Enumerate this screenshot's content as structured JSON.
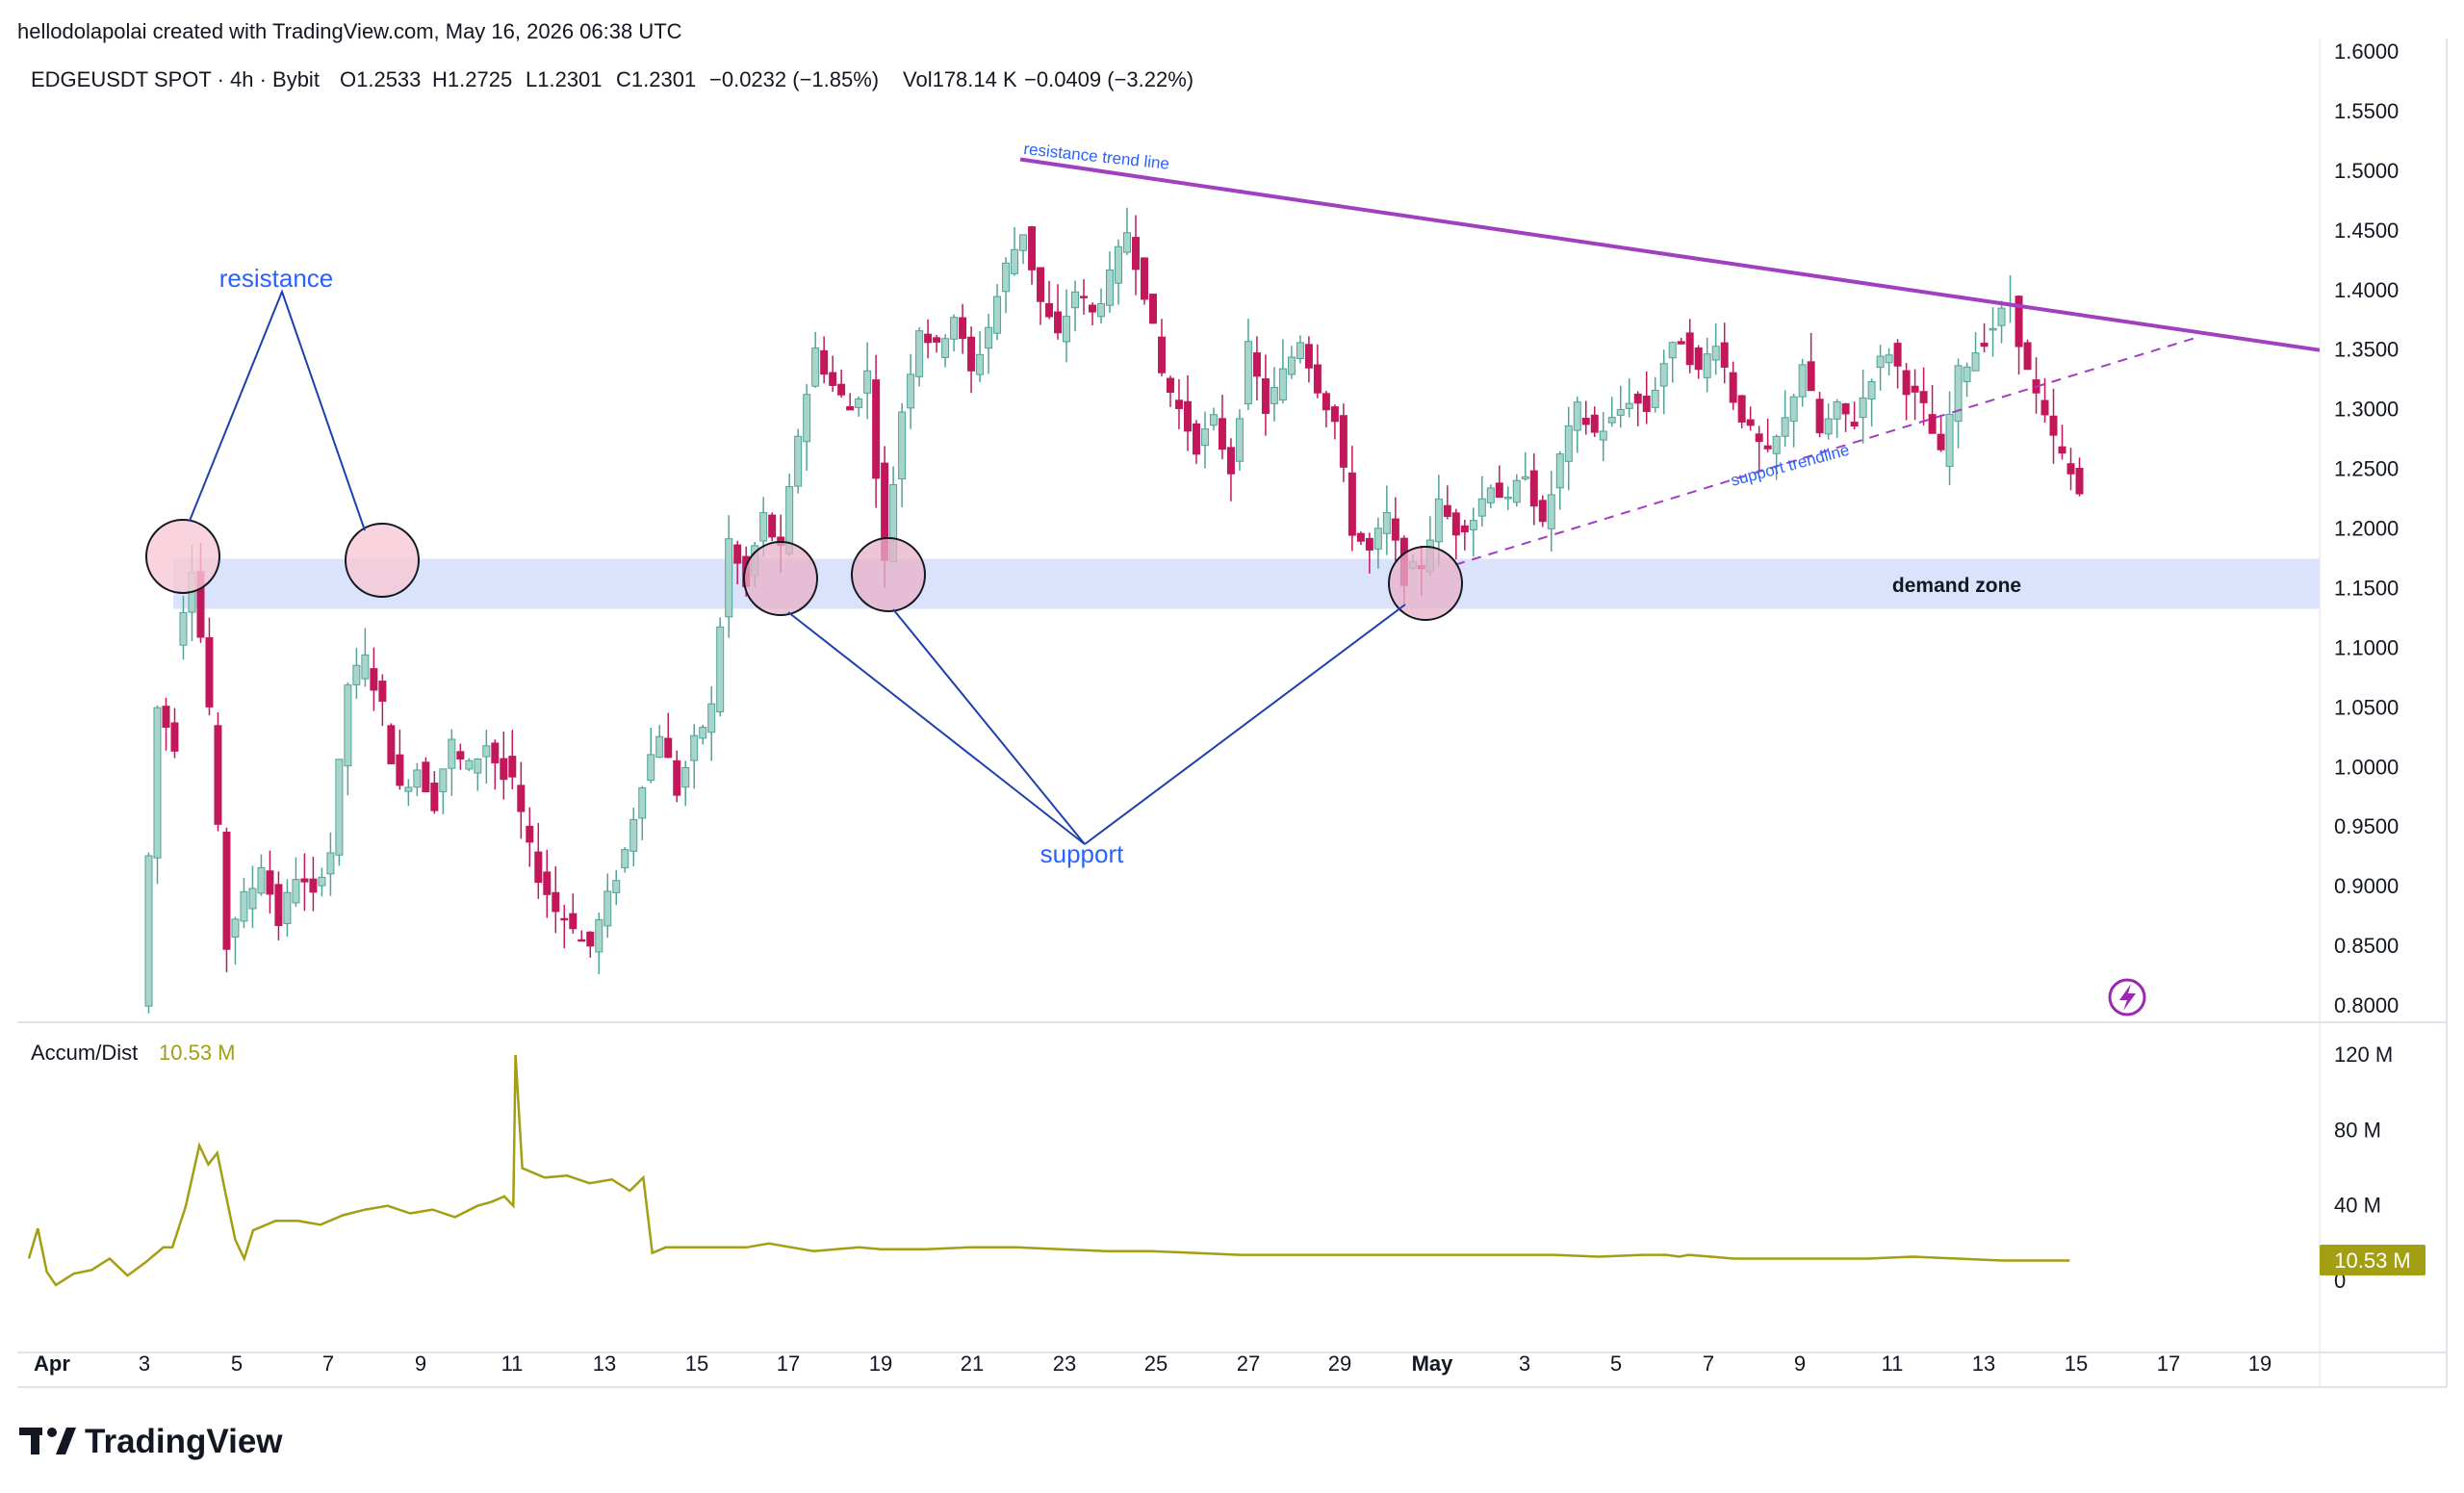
{
  "header": {
    "credit": "hellodolapolai created with TradingView.com, May 16, 2026 06:38 UTC",
    "symbol": "EDGEUSDT SPOT · 4h · Bybit",
    "open": "O1.2533",
    "high": "H1.2725",
    "low": "L1.2301",
    "close": "C1.2301",
    "change": "−0.0232 (−1.85%)",
    "volume": "Vol178.14 K",
    "volume_change": "−0.0409 (−3.22%)"
  },
  "colors": {
    "up": "#4fa397",
    "up_fill": "#a8d5cb",
    "down": "#c2185b",
    "resistance_line": "#a13fc1",
    "zone": "#dbe2fb",
    "circle_fill": "#f8c8d4",
    "annotation_blue": "#1e40af",
    "label_blue": "#2962ff",
    "indicator": "#a39e12"
  },
  "annotations": {
    "resistance": "resistance",
    "support": "support",
    "resistance_trend": "resistance trend line",
    "support_trend": "support trendline",
    "demand_zone": "demand zone"
  },
  "indicator": {
    "name": "Accum/Dist",
    "value": "10.53 M",
    "badge": "10.53 M",
    "axis_labels": [
      "120 M",
      "80 M",
      "40 M",
      "0"
    ],
    "axis_values": [
      120,
      80,
      40,
      0
    ],
    "series": [
      [
        0,
        12
      ],
      [
        0.2,
        28
      ],
      [
        0.4,
        5
      ],
      [
        0.6,
        -2
      ],
      [
        1,
        4
      ],
      [
        1.4,
        6
      ],
      [
        1.8,
        12
      ],
      [
        2.2,
        3
      ],
      [
        2.6,
        10
      ],
      [
        3,
        18
      ],
      [
        3.2,
        18
      ],
      [
        3.5,
        40
      ],
      [
        3.8,
        72
      ],
      [
        4,
        62
      ],
      [
        4.2,
        68
      ],
      [
        4.4,
        45
      ],
      [
        4.6,
        22
      ],
      [
        4.8,
        12
      ],
      [
        5,
        27
      ],
      [
        5.5,
        32
      ],
      [
        6,
        32
      ],
      [
        6.5,
        30
      ],
      [
        7,
        35
      ],
      [
        7.5,
        38
      ],
      [
        8,
        40
      ],
      [
        8.5,
        36
      ],
      [
        9,
        38
      ],
      [
        9.5,
        34
      ],
      [
        10,
        40
      ],
      [
        10.3,
        42
      ],
      [
        10.6,
        45
      ],
      [
        10.8,
        40
      ],
      [
        10.85,
        120
      ],
      [
        11,
        60
      ],
      [
        11.5,
        55
      ],
      [
        12,
        56
      ],
      [
        12.5,
        52
      ],
      [
        13,
        54
      ],
      [
        13.4,
        48
      ],
      [
        13.7,
        55
      ],
      [
        13.9,
        15
      ],
      [
        14.2,
        18
      ],
      [
        15,
        18
      ],
      [
        16,
        18
      ],
      [
        16.5,
        20
      ],
      [
        17,
        18
      ],
      [
        17.5,
        16
      ],
      [
        18,
        17
      ],
      [
        18.5,
        18
      ],
      [
        19,
        17
      ],
      [
        20,
        17
      ],
      [
        21,
        18
      ],
      [
        22,
        18
      ],
      [
        23,
        17
      ],
      [
        24,
        16
      ],
      [
        25,
        16
      ],
      [
        26,
        15
      ],
      [
        27,
        14
      ],
      [
        28,
        14
      ],
      [
        29,
        14
      ],
      [
        30,
        14
      ],
      [
        32,
        14
      ],
      [
        34,
        14
      ],
      [
        35,
        13
      ],
      [
        36,
        14
      ],
      [
        36.5,
        14
      ],
      [
        36.8,
        13
      ],
      [
        37,
        14
      ],
      [
        37.5,
        13
      ],
      [
        38,
        12
      ],
      [
        38.5,
        12
      ],
      [
        39,
        12
      ],
      [
        40,
        12
      ],
      [
        41,
        12
      ],
      [
        42,
        13
      ],
      [
        43,
        12
      ],
      [
        44,
        11
      ],
      [
        45,
        11
      ],
      [
        45.5,
        11
      ]
    ]
  },
  "watermark": "TradingView",
  "chart_data": {
    "type": "candlestick",
    "timeframe": "4h",
    "symbol": "EDGEUSDT",
    "exchange": "Bybit",
    "x_tick_labels": [
      "Apr",
      "3",
      "5",
      "7",
      "9",
      "11",
      "13",
      "15",
      "17",
      "19",
      "21",
      "23",
      "25",
      "27",
      "29",
      "May",
      "3",
      "5",
      "7",
      "9",
      "11",
      "13",
      "15",
      "17",
      "19"
    ],
    "y_tick_labels": [
      "1.6000",
      "1.5500",
      "1.5000",
      "1.4500",
      "1.4000",
      "1.3500",
      "1.3000",
      "1.2500",
      "1.2000",
      "1.1500",
      "1.1000",
      "1.0500",
      "1.0000",
      "0.9500",
      "0.9000",
      "0.8500",
      "0.8000"
    ],
    "y_tick_values": [
      1.6,
      1.55,
      1.5,
      1.45,
      1.4,
      1.35,
      1.3,
      1.25,
      1.2,
      1.15,
      1.1,
      1.05,
      1.0,
      0.95,
      0.9,
      0.85,
      0.8
    ],
    "ylim": [
      0.79,
      1.605
    ],
    "last_price": 1.2301,
    "daily_path": [
      [
        0.8,
        1.05
      ],
      [
        1.05,
        1.02
      ],
      [
        1.1,
        1.17
      ],
      [
        1.17,
        1.05
      ],
      [
        1.04,
        0.85
      ],
      [
        0.86,
        0.89
      ],
      [
        0.88,
        0.92
      ],
      [
        0.92,
        0.87
      ],
      [
        0.87,
        0.91
      ],
      [
        0.91,
        0.89
      ],
      [
        0.9,
        0.93
      ],
      [
        0.93,
        1.07
      ],
      [
        1.07,
        1.09
      ],
      [
        1.09,
        1.05
      ],
      [
        1.04,
        0.98
      ],
      [
        0.98,
        1.0
      ],
      [
        1.0,
        0.97
      ],
      [
        0.98,
        1.02
      ],
      [
        1.01,
        1.0
      ],
      [
        1.0,
        1.02
      ],
      [
        1.02,
        0.99
      ],
      [
        1.01,
        0.96
      ],
      [
        0.95,
        0.91
      ],
      [
        0.91,
        0.88
      ],
      [
        0.88,
        0.87
      ],
      [
        0.86,
        0.85
      ],
      [
        0.85,
        0.89
      ],
      [
        0.89,
        0.93
      ],
      [
        0.93,
        0.99
      ],
      [
        0.99,
        1.03
      ],
      [
        1.03,
        0.98
      ],
      [
        0.98,
        1.02
      ],
      [
        1.02,
        1.05
      ],
      [
        1.05,
        1.19
      ],
      [
        1.19,
        1.15
      ],
      [
        1.16,
        1.21
      ],
      [
        1.21,
        1.18
      ],
      [
        1.18,
        1.28
      ],
      [
        1.28,
        1.35
      ],
      [
        1.35,
        1.32
      ],
      [
        1.32,
        1.3
      ],
      [
        1.3,
        1.33
      ],
      [
        1.33,
        1.17
      ],
      [
        1.18,
        1.3
      ],
      [
        1.3,
        1.37
      ],
      [
        1.37,
        1.35
      ],
      [
        1.35,
        1.38
      ],
      [
        1.38,
        1.33
      ],
      [
        1.33,
        1.37
      ],
      [
        1.37,
        1.42
      ],
      [
        1.42,
        1.45
      ],
      [
        1.45,
        1.39
      ],
      [
        1.39,
        1.36
      ],
      [
        1.36,
        1.4
      ],
      [
        1.4,
        1.38
      ],
      [
        1.38,
        1.41
      ],
      [
        1.41,
        1.45
      ],
      [
        1.45,
        1.4
      ],
      [
        1.4,
        1.33
      ],
      [
        1.33,
        1.3
      ],
      [
        1.3,
        1.27
      ],
      [
        1.27,
        1.29
      ],
      [
        1.29,
        1.25
      ],
      [
        1.25,
        1.35
      ],
      [
        1.35,
        1.3
      ],
      [
        1.3,
        1.33
      ],
      [
        1.33,
        1.36
      ],
      [
        1.36,
        1.32
      ],
      [
        1.32,
        1.29
      ],
      [
        1.29,
        1.2
      ],
      [
        1.2,
        1.18
      ],
      [
        1.18,
        1.21
      ],
      [
        1.21,
        1.16
      ],
      [
        1.16,
        1.17
      ],
      [
        1.17,
        1.22
      ],
      [
        1.22,
        1.2
      ],
      [
        1.2,
        1.21
      ],
      [
        1.21,
        1.24
      ],
      [
        1.24,
        1.22
      ],
      [
        1.22,
        1.25
      ],
      [
        1.25,
        1.2
      ],
      [
        1.2,
        1.26
      ],
      [
        1.26,
        1.3
      ],
      [
        1.3,
        1.28
      ],
      [
        1.28,
        1.29
      ],
      [
        1.29,
        1.31
      ],
      [
        1.31,
        1.3
      ],
      [
        1.3,
        1.34
      ],
      [
        1.34,
        1.36
      ],
      [
        1.36,
        1.33
      ],
      [
        1.33,
        1.36
      ],
      [
        1.36,
        1.31
      ],
      [
        1.31,
        1.28
      ],
      [
        1.28,
        1.26
      ],
      [
        1.26,
        1.29
      ],
      [
        1.29,
        1.34
      ],
      [
        1.34,
        1.28
      ],
      [
        1.28,
        1.3
      ],
      [
        1.3,
        1.29
      ],
      [
        1.29,
        1.33
      ],
      [
        1.33,
        1.35
      ],
      [
        1.35,
        1.32
      ],
      [
        1.32,
        1.3
      ],
      [
        1.3,
        1.26
      ],
      [
        1.26,
        1.33
      ],
      [
        1.33,
        1.35
      ],
      [
        1.35,
        1.37
      ],
      [
        1.37,
        1.39
      ],
      [
        1.39,
        1.33
      ],
      [
        1.33,
        1.29
      ],
      [
        1.29,
        1.26
      ],
      [
        1.26,
        1.23
      ]
    ],
    "levels": {
      "demand_zone": [
        1.133,
        1.175
      ],
      "resistance_trend_line": [
        [
          22,
          1.51
        ],
        [
          48.5,
          1.35
        ]
      ],
      "support_trend_line": [
        [
          30.7,
          1.17
        ],
        [
          47.8,
          1.36
        ]
      ]
    }
  }
}
